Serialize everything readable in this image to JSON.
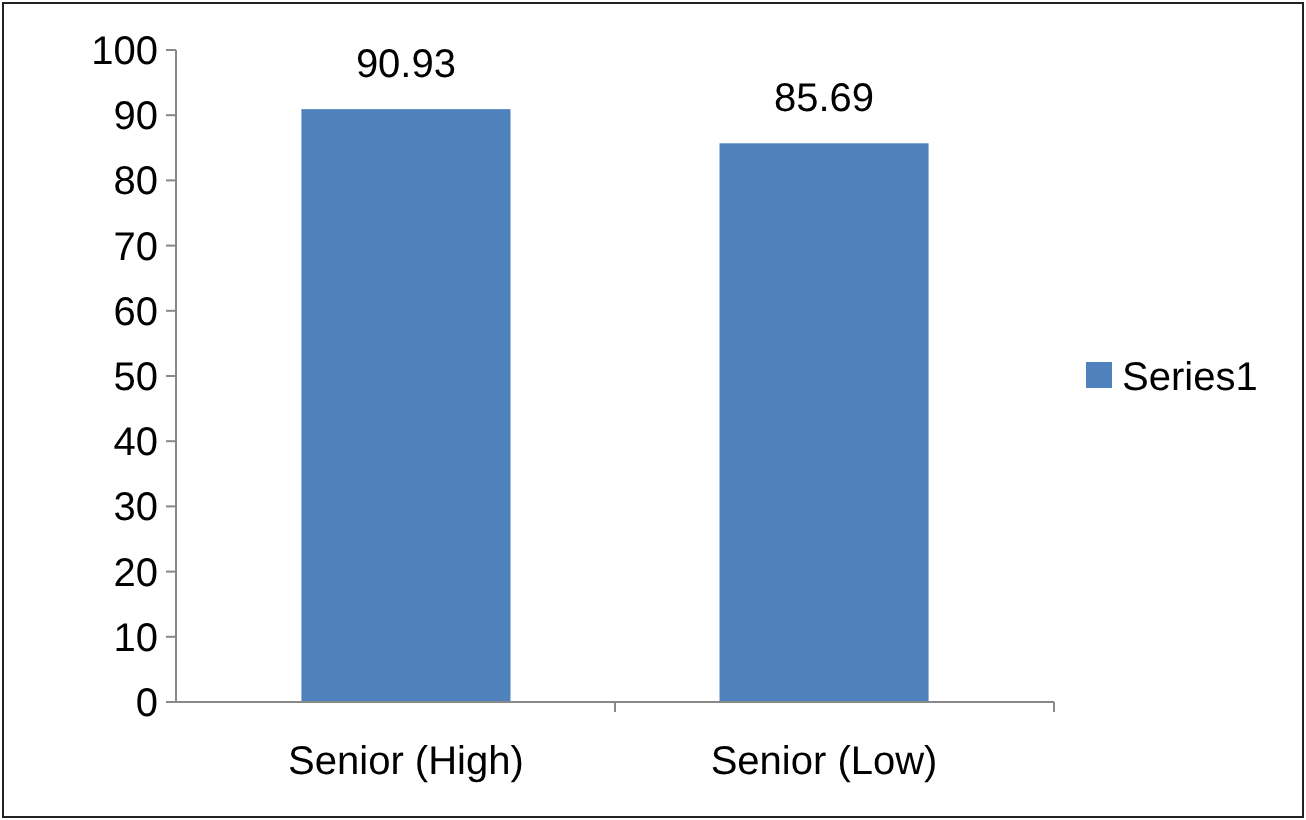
{
  "chart_data": {
    "type": "bar",
    "categories": [
      "Senior (High)",
      "Senior (Low)"
    ],
    "series": [
      {
        "name": "Series1",
        "color": "#4f81bd",
        "values": [
          90.93,
          85.69
        ]
      }
    ],
    "ylim": [
      0,
      100
    ],
    "yticks": [
      0,
      10,
      20,
      30,
      40,
      50,
      60,
      70,
      80,
      90,
      100
    ],
    "data_labels": true,
    "legend": "right",
    "grid": false
  }
}
